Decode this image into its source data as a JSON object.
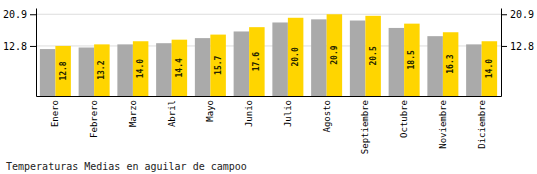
{
  "chart_data": {
    "type": "bar",
    "title": "Temperaturas Medias en aguilar de campoo",
    "categories": [
      "Enero",
      "Febrero",
      "Marzo",
      "Abril",
      "Mayo",
      "Junio",
      "Julio",
      "Agosto",
      "Septiembre",
      "Octubre",
      "Noviembre",
      "Diciembre"
    ],
    "series": [
      {
        "color": "#AAAAAA",
        "values": [
          12.0,
          12.4,
          13.2,
          13.5,
          14.8,
          16.5,
          18.8,
          19.6,
          19.3,
          17.4,
          15.3,
          13.2
        ]
      },
      {
        "color": "#FFD500",
        "values": [
          12.8,
          13.2,
          14.0,
          14.4,
          15.7,
          17.6,
          20.0,
          20.9,
          20.5,
          18.5,
          16.3,
          14.0
        ],
        "value_labels": [
          "12.8",
          "13.2",
          "14.0",
          "14.4",
          "15.7",
          "17.6",
          "20.0",
          "20.9",
          "20.5",
          "18.5",
          "16.3",
          "14.0"
        ],
        "data_labels": true
      }
    ],
    "ylim": [
      0,
      22.5
    ],
    "yticks": [
      12.8,
      20.9
    ],
    "y2lim": [
      0,
      22.5
    ],
    "y2ticks": [
      12.8,
      20.9
    ],
    "grid": true
  }
}
